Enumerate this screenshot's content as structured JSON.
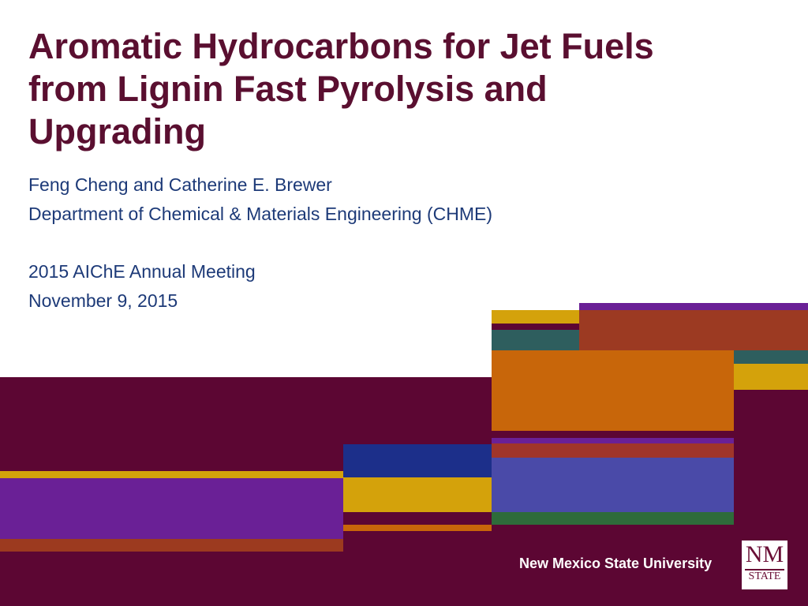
{
  "slide": {
    "title_lines": [
      "Aromatic Hydrocarbons for Jet Fuels",
      "from Lignin Fast Pyrolysis and",
      "Upgrading"
    ],
    "authors": "Feng Cheng and Catherine E. Brewer",
    "department": "Department of Chemical & Materials Engineering (CHME)",
    "meeting": "2015 AIChE Annual Meeting",
    "date": "November 9, 2015",
    "university": "New Mexico State University",
    "logo_top": "NM",
    "logo_bottom": "STATE"
  }
}
